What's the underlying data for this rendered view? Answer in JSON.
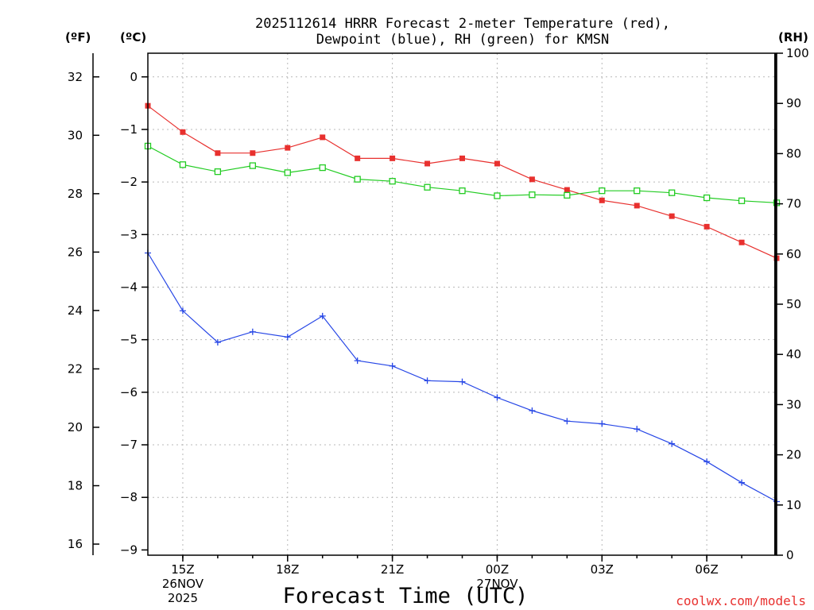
{
  "chart_data": {
    "type": "line",
    "title_line1": "2025112614 HRRR Forecast 2-meter Temperature (red),",
    "title_line2": "Dewpoint (blue), RH (green) for KMSN",
    "unit_f": "(ºF)",
    "unit_c": "(ºC)",
    "unit_rh": "(RH)",
    "xlabel": "Forecast Time (UTC)",
    "credit": "coolwx.com/models",
    "x_range": [
      14,
      32
    ],
    "c_range": [
      -9.1,
      0.45
    ],
    "f_range": [
      15.62,
      32.81
    ],
    "rh_range": [
      0,
      100
    ],
    "x_ticks": [
      {
        "x": 15,
        "lines": [
          "15Z",
          "26NOV",
          "2025"
        ]
      },
      {
        "x": 18,
        "lines": [
          "18Z"
        ]
      },
      {
        "x": 21,
        "lines": [
          "21Z"
        ]
      },
      {
        "x": 24,
        "lines": [
          "00Z",
          "27NOV"
        ]
      },
      {
        "x": 27,
        "lines": [
          "03Z"
        ]
      },
      {
        "x": 30,
        "lines": [
          "06Z"
        ]
      }
    ],
    "c_ticks": [
      0,
      -1,
      -2,
      -3,
      -4,
      -5,
      -6,
      -7,
      -8,
      -9
    ],
    "c_tick_labels": [
      "0",
      "−1",
      "−2",
      "−3",
      "−4",
      "−5",
      "−6",
      "−7",
      "−8",
      "−9"
    ],
    "f_ticks": [
      32,
      30,
      28,
      26,
      24,
      22,
      20,
      18,
      16
    ],
    "rh_ticks": [
      100,
      90,
      80,
      70,
      60,
      50,
      40,
      30,
      20,
      10,
      0
    ],
    "series": [
      {
        "name": "Temperature",
        "unit": "C",
        "color": "#e8302e",
        "marker": "filled-square",
        "x": [
          14,
          15,
          16,
          17,
          18,
          19,
          20,
          21,
          22,
          23,
          24,
          25,
          26,
          27,
          28,
          29,
          30,
          31,
          32
        ],
        "values": [
          -0.55,
          -1.05,
          -1.45,
          -1.45,
          -1.35,
          -1.15,
          -1.55,
          -1.55,
          -1.65,
          -1.55,
          -1.65,
          -1.95,
          -2.15,
          -2.35,
          -2.45,
          -2.65,
          -2.85,
          -3.15,
          -3.45
        ]
      },
      {
        "name": "Dewpoint",
        "unit": "C",
        "color": "#2646e6",
        "marker": "plus",
        "x": [
          14,
          15,
          16,
          17,
          18,
          19,
          20,
          21,
          22,
          23,
          24,
          25,
          26,
          27,
          28,
          29,
          30,
          31,
          32
        ],
        "values": [
          -3.35,
          -4.45,
          -5.05,
          -4.85,
          -4.95,
          -4.55,
          -5.4,
          -5.5,
          -5.78,
          -5.8,
          -6.1,
          -6.35,
          -6.55,
          -6.6,
          -6.7,
          -6.98,
          -7.32,
          -7.72,
          -8.08
        ]
      },
      {
        "name": "RH",
        "unit": "%",
        "color": "#22cc22",
        "marker": "open-square",
        "x": [
          14,
          15,
          16,
          17,
          18,
          19,
          20,
          21,
          22,
          23,
          24,
          25,
          26,
          27,
          28,
          29,
          30,
          31,
          32
        ],
        "values": [
          81.5,
          77.8,
          76.4,
          77.6,
          76.2,
          77.2,
          74.9,
          74.5,
          73.3,
          72.6,
          71.6,
          71.8,
          71.7,
          72.6,
          72.6,
          72.2,
          71.2,
          70.6,
          70.2
        ]
      }
    ]
  }
}
